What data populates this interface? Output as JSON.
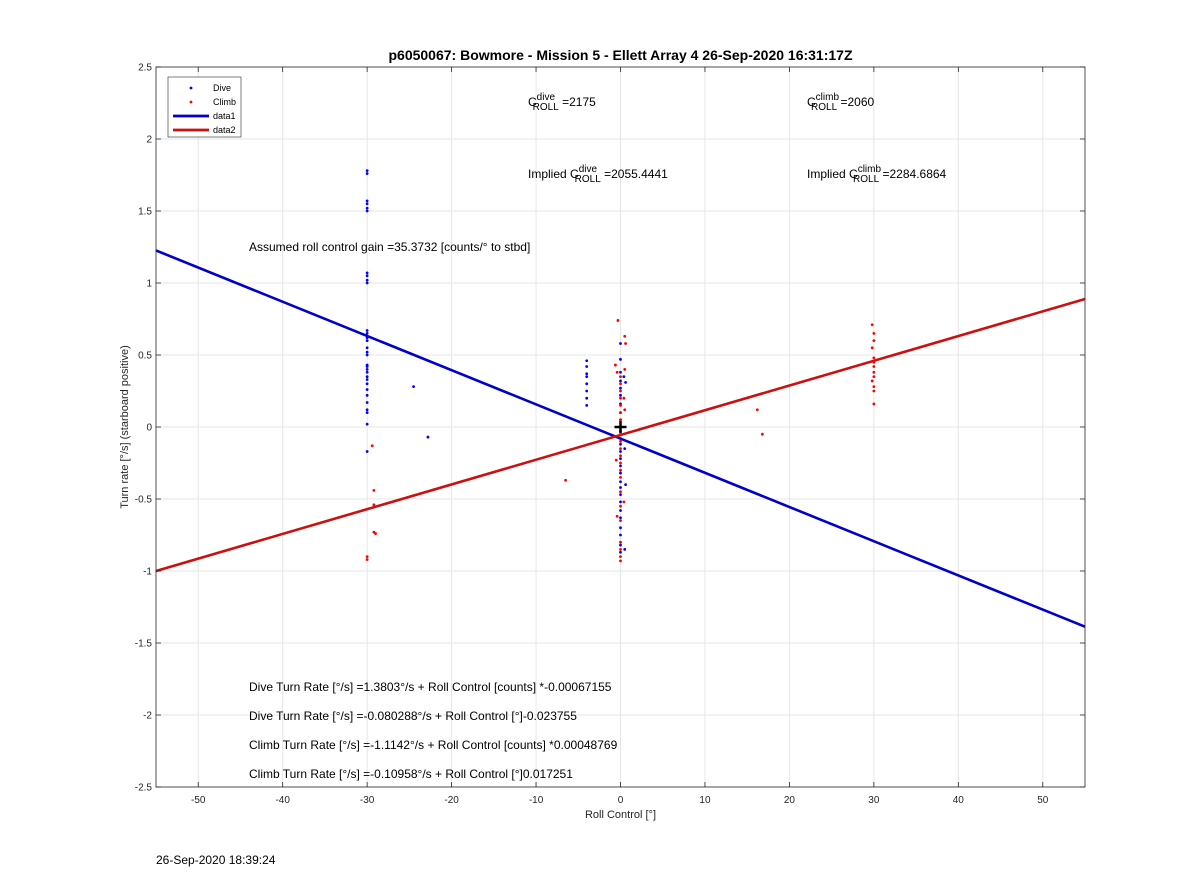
{
  "chart_data": {
    "type": "scatter",
    "title": "p6050067: Bowmore - Mission 5 - Ellett Array 4 26-Sep-2020 16:31:17Z",
    "xlabel": "Roll Control [°]",
    "ylabel": "Turn rate [°/s] (starboard positive)",
    "xlim": [
      -55,
      55
    ],
    "ylim": [
      -2.5,
      2.5
    ],
    "xticks": [
      -50,
      -40,
      -30,
      -20,
      -10,
      0,
      10,
      20,
      30,
      40,
      50
    ],
    "yticks": [
      -2.5,
      -2,
      -1.5,
      -1,
      -0.5,
      0,
      0.5,
      1,
      1.5,
      2,
      2.5
    ],
    "grid": true,
    "legend_position": "top-left",
    "colors": {
      "dive": "#0000ff",
      "climb": "#ff0000",
      "data1": "#0000cc",
      "data2": "#cc1010"
    },
    "series": [
      {
        "name": "Dive",
        "kind": "points",
        "color": "#0000ff",
        "points": [
          [
            -30,
            1.78
          ],
          [
            -30,
            1.76
          ],
          [
            -30,
            1.57
          ],
          [
            -30,
            1.55
          ],
          [
            -30,
            1.52
          ],
          [
            -30,
            1.5
          ],
          [
            -30,
            1.07
          ],
          [
            -30,
            1.05
          ],
          [
            -30,
            1.02
          ],
          [
            -30,
            1.0
          ],
          [
            -30,
            0.67
          ],
          [
            -30,
            0.65
          ],
          [
            -30,
            0.62
          ],
          [
            -30,
            0.6
          ],
          [
            -30,
            0.55
          ],
          [
            -30,
            0.52
          ],
          [
            -30,
            0.5
          ],
          [
            -30,
            0.43
          ],
          [
            -30,
            0.42
          ],
          [
            -30,
            0.4
          ],
          [
            -30,
            0.38
          ],
          [
            -30,
            0.35
          ],
          [
            -30,
            0.33
          ],
          [
            -30,
            0.3
          ],
          [
            -30,
            0.26
          ],
          [
            -30,
            0.22
          ],
          [
            -30,
            0.17
          ],
          [
            -30,
            0.12
          ],
          [
            -30,
            0.1
          ],
          [
            -30,
            0.02
          ],
          [
            -30,
            -0.17
          ],
          [
            -24.5,
            0.28
          ],
          [
            -22.8,
            -0.07
          ],
          [
            -4,
            0.46
          ],
          [
            -4,
            0.42
          ],
          [
            -4,
            0.37
          ],
          [
            -4,
            0.35
          ],
          [
            -4,
            0.3
          ],
          [
            -4,
            0.25
          ],
          [
            -4,
            0.2
          ],
          [
            -4,
            0.15
          ],
          [
            0,
            0.58
          ],
          [
            0,
            0.47
          ],
          [
            0,
            0.38
          ],
          [
            0,
            0.32
          ],
          [
            0,
            0.27
          ],
          [
            0,
            0.22
          ],
          [
            0,
            0.16
          ],
          [
            0,
            0.1
          ],
          [
            0,
            0.05
          ],
          [
            0,
            -0.03
          ],
          [
            0,
            -0.08
          ],
          [
            0,
            -0.12
          ],
          [
            0,
            -0.17
          ],
          [
            0,
            -0.22
          ],
          [
            0,
            -0.27
          ],
          [
            0,
            -0.32
          ],
          [
            0,
            -0.38
          ],
          [
            0,
            -0.42
          ],
          [
            0,
            -0.47
          ],
          [
            0,
            -0.52
          ],
          [
            0,
            -0.58
          ],
          [
            0,
            -0.63
          ],
          [
            0,
            -0.7
          ],
          [
            0,
            -0.75
          ],
          [
            0,
            -0.82
          ],
          [
            0,
            -0.87
          ],
          [
            0.5,
            -0.85
          ],
          [
            0.4,
            0.35
          ],
          [
            0.5,
            -0.15
          ],
          [
            0.6,
            0.31
          ],
          [
            0.6,
            -0.4
          ]
        ]
      },
      {
        "name": "Climb",
        "kind": "points",
        "color": "#ff0000",
        "points": [
          [
            -30,
            -0.9
          ],
          [
            -30,
            -0.92
          ],
          [
            -29.4,
            -0.13
          ],
          [
            -29.2,
            -0.44
          ],
          [
            -29.2,
            -0.54
          ],
          [
            -29.2,
            -0.73
          ],
          [
            -29,
            -0.74
          ],
          [
            -6.5,
            -0.37
          ],
          [
            -0.3,
            0.74
          ],
          [
            0.5,
            0.63
          ],
          [
            0.6,
            0.58
          ],
          [
            -0.6,
            0.43
          ],
          [
            -0.4,
            0.38
          ],
          [
            0.5,
            0.4
          ],
          [
            0,
            0.35
          ],
          [
            0,
            0.3
          ],
          [
            0,
            0.25
          ],
          [
            0,
            0.2
          ],
          [
            0,
            0.15
          ],
          [
            0,
            0.1
          ],
          [
            0,
            0.05
          ],
          [
            0,
            -0.05
          ],
          [
            0,
            -0.1
          ],
          [
            0,
            -0.15
          ],
          [
            0,
            -0.2
          ],
          [
            0,
            -0.25
          ],
          [
            0,
            -0.3
          ],
          [
            0,
            -0.35
          ],
          [
            0,
            -0.45
          ],
          [
            0,
            -0.55
          ],
          [
            0,
            -0.65
          ],
          [
            0,
            -0.8
          ],
          [
            0,
            -0.85
          ],
          [
            0,
            -0.9
          ],
          [
            0,
            -0.93
          ],
          [
            0.4,
            -0.52
          ],
          [
            -0.5,
            -0.23
          ],
          [
            0.4,
            0.2
          ],
          [
            0.5,
            0.12
          ],
          [
            -0.4,
            -0.62
          ],
          [
            16.2,
            0.12
          ],
          [
            16.8,
            -0.05
          ],
          [
            29.8,
            0.71
          ],
          [
            30,
            0.65
          ],
          [
            30,
            0.6
          ],
          [
            29.8,
            0.55
          ],
          [
            30,
            0.48
          ],
          [
            30,
            0.45
          ],
          [
            30,
            0.42
          ],
          [
            30,
            0.38
          ],
          [
            30,
            0.35
          ],
          [
            29.8,
            0.32
          ],
          [
            30,
            0.28
          ],
          [
            30,
            0.25
          ],
          [
            30,
            0.16
          ]
        ]
      },
      {
        "name": "data1",
        "kind": "line",
        "color": "#0000cc",
        "points": [
          [
            -55,
            1.226
          ],
          [
            55,
            -1.387
          ]
        ]
      },
      {
        "name": "data2",
        "kind": "line",
        "color": "#cc1010",
        "points": [
          [
            -55,
            -1.0
          ],
          [
            55,
            0.889
          ]
        ]
      }
    ],
    "origin_marker": [
      0,
      0
    ],
    "annotations": [
      {
        "id": "c-dive",
        "prefix": "C",
        "sup": "dive",
        "sub": "ROLL",
        "suffix": " =2175"
      },
      {
        "id": "c-climb",
        "prefix": "C",
        "sup": "climb",
        "sub": "ROLL",
        "suffix": " =2060"
      },
      {
        "id": "implied-dive",
        "prefix": "Implied C",
        "sup": "dive",
        "sub": "ROLL",
        "suffix": " =2055.4441"
      },
      {
        "id": "implied-climb",
        "prefix": "Implied C",
        "sup": "climb",
        "sub": "ROLL",
        "suffix": " =2284.6864"
      }
    ],
    "gain_text": "Assumed roll control gain =35.3732 [counts/° to stbd]",
    "equations": [
      "Dive Turn Rate [°/s] =1.3803°/s + Roll Control [counts] *-0.00067155",
      "Dive Turn Rate [°/s] =-0.080288°/s + Roll Control [°]-0.023755",
      "Climb Turn Rate [°/s] =-1.1142°/s + Roll Control [counts] *0.00048769",
      "Climb Turn Rate [°/s] =-0.10958°/s + Roll Control [°]0.017251"
    ]
  },
  "footer_timestamp": "26-Sep-2020 18:39:24"
}
